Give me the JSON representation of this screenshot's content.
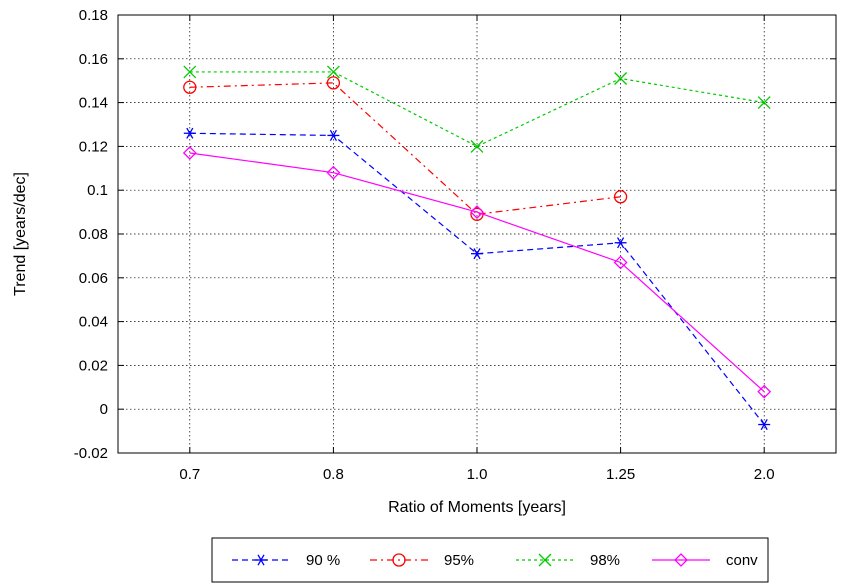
{
  "chart_data": {
    "type": "line",
    "xlabel": "Ratio of Moments [years]",
    "ylabel": "Trend [years/dec]",
    "categories": [
      "0.7",
      "0.8",
      "1.0",
      "1.25",
      "2.0"
    ],
    "ylim": [
      -0.02,
      0.18
    ],
    "yticks": [
      -0.02,
      0,
      0.02,
      0.04,
      0.06,
      0.08,
      0.1,
      0.12,
      0.14,
      0.16,
      0.18
    ],
    "ytick_labels": [
      "-0.02",
      "0",
      "0.02",
      "0.04",
      "0.06",
      "0.08",
      "0.1",
      "0.12",
      "0.14",
      "0.16",
      "0.18"
    ],
    "grid": true,
    "legend_position": "bottom",
    "series": [
      {
        "name": "90 %",
        "values": [
          0.126,
          0.125,
          0.071,
          0.076,
          -0.007
        ],
        "color": "#0000ff",
        "dash": "dashed",
        "marker": "asterisk"
      },
      {
        "name": "95%",
        "values": [
          0.147,
          0.149,
          0.089,
          0.097,
          null
        ],
        "color": "#ff0000",
        "dash": "dash-dot",
        "marker": "circle"
      },
      {
        "name": "98%",
        "values": [
          0.154,
          0.154,
          0.12,
          0.151,
          0.14
        ],
        "color": "#00cc00",
        "dash": "dotted",
        "marker": "cross"
      },
      {
        "name": "conv",
        "values": [
          0.117,
          0.108,
          0.09,
          0.067,
          0.008
        ],
        "color": "#ff00ff",
        "dash": "solid",
        "marker": "diamond"
      }
    ]
  }
}
